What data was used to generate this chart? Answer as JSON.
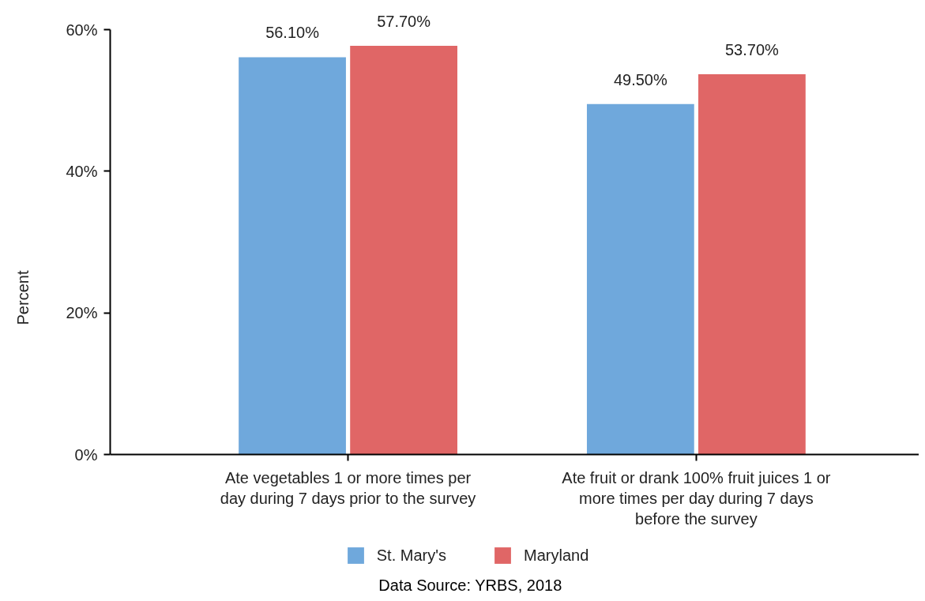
{
  "chart_data": {
    "type": "bar",
    "ylabel": "Percent",
    "categories": [
      "Ate vegetables 1 or more times per day during 7 days prior to the survey",
      "Ate fruit or drank 100% fruit juices 1 or more times per day during 7 days before the survey"
    ],
    "series": [
      {
        "name": "St. Mary's",
        "color": "#6fa8dc",
        "values": [
          56.1,
          49.5
        ],
        "value_labels": [
          "56.10%",
          "49.50%"
        ]
      },
      {
        "name": "Maryland",
        "color": "#e06666",
        "values": [
          57.7,
          53.7
        ],
        "value_labels": [
          "57.70%",
          "53.70%"
        ]
      }
    ],
    "ylim": [
      0,
      60
    ],
    "yticks": [
      {
        "value": 0,
        "label": "0%"
      },
      {
        "value": 20,
        "label": "20%"
      },
      {
        "value": 40,
        "label": "40%"
      },
      {
        "value": 60,
        "label": "60%"
      }
    ],
    "legend": "bottom",
    "annotations": [
      "Data Source: YRBS, 2018"
    ]
  }
}
